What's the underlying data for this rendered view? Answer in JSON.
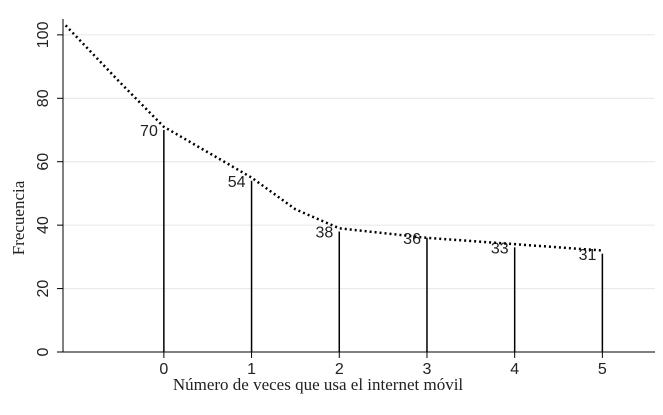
{
  "chart_data": {
    "type": "spike",
    "x_label": "Número de veces que usa el internet móvil",
    "y_label": "Frecuencia",
    "xlim": [
      -1.15,
      5.6
    ],
    "ylim": [
      0,
      105
    ],
    "xticks": [
      0,
      1,
      2,
      3,
      4,
      5
    ],
    "yticks": [
      0,
      20,
      40,
      60,
      80,
      100
    ],
    "grid": true,
    "series": [
      {
        "type": "spike",
        "color": "#000000",
        "x": [
          0,
          1,
          2,
          3,
          4,
          5
        ],
        "values": [
          70,
          54,
          38,
          36,
          33,
          31
        ]
      },
      {
        "type": "line",
        "style": "dotted",
        "color": "#000000",
        "x": [
          -1.12,
          -0.5,
          0,
          0.5,
          1,
          1.5,
          2,
          2.5,
          3,
          3.5,
          4,
          4.5,
          5
        ],
        "values": [
          103,
          85,
          71,
          63,
          55,
          45,
          39,
          37.5,
          36,
          35,
          34,
          33,
          32
        ]
      }
    ]
  }
}
